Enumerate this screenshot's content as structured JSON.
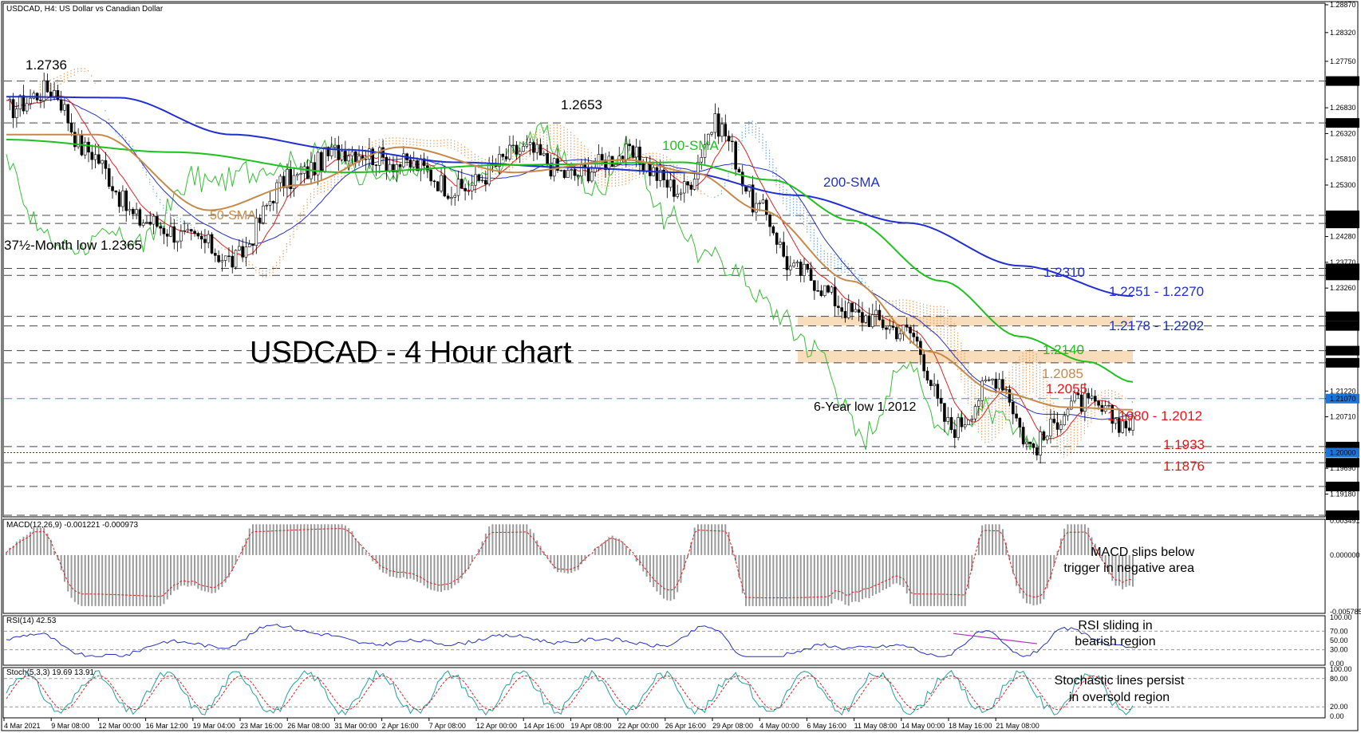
{
  "header": {
    "main_title": "USDCAD, H4:  US Dollar vs Canadian Dollar",
    "macd_title": "MACD(12,26,9) -0.001221 -0.000973",
    "rsi_title": "RSI(14) 42.53",
    "stoch_title": "Stoch(5,3,3) 19.69 13.91"
  },
  "chart_data": [
    {
      "type": "line",
      "panel": "price",
      "title": "USDCAD - 4 Hour chart",
      "ylim": [
        1.1876,
        1.2887
      ],
      "price_axis_ticks": [
        "1.28870",
        "1.28320",
        "1.27750",
        "1.27360",
        "1.26830",
        "1.26530",
        "1.26320",
        "1.25810",
        "1.25300",
        "1.24700",
        "1.24540",
        "1.24280",
        "1.23770",
        "1.23650",
        "1.23510",
        "1.23260",
        "1.22700",
        "1.22510",
        "1.22020",
        "1.21780",
        "1.21220",
        "1.21070",
        "1.20710",
        "1.20120",
        "1.20000",
        "1.19800",
        "1.19690",
        "1.19330",
        "1.19180",
        "1.18760"
      ],
      "x_labels": [
        "4 Mar 2021",
        "9 Mar 08:00",
        "12 Mar 00:00",
        "16 Mar 12:00",
        "19 Mar 04:00",
        "23 Mar 16:00",
        "26 Mar 08:00",
        "31 Mar 00:00",
        "2 Apr 16:00",
        "7 Apr 08:00",
        "12 Apr 00:00",
        "14 Apr 16:00",
        "19 Apr 08:00",
        "22 Apr 00:00",
        "26 Apr 16:00",
        "29 Apr 08:00",
        "4 May 00:00",
        "6 May 16:00",
        "11 May 08:00",
        "14 May 00:00",
        "18 May 16:00",
        "21 May 08:00"
      ],
      "horizontal_levels": [
        {
          "value": 1.2736,
          "label": "1.27360"
        },
        {
          "value": 1.2653,
          "label": "1.26530"
        },
        {
          "value": 1.247,
          "label": "1.24700"
        },
        {
          "value": 1.2454,
          "label": "1.24540"
        },
        {
          "value": 1.2365,
          "label": "1.23650"
        },
        {
          "value": 1.2351,
          "label": "1.23510"
        },
        {
          "value": 1.227,
          "label": "1.22700"
        },
        {
          "value": 1.2251,
          "label": "1.22510"
        },
        {
          "value": 1.2202,
          "label": "1.22020"
        },
        {
          "value": 1.2178,
          "label": "1.21780"
        },
        {
          "value": 1.2107,
          "label": "1.21070"
        },
        {
          "value": 1.2012,
          "label": "1.20120"
        },
        {
          "value": 1.2,
          "label": "1.20000"
        },
        {
          "value": 1.198,
          "label": "1.19800"
        },
        {
          "value": 1.1933,
          "label": "1.19330"
        },
        {
          "value": 1.1876,
          "label": "1.18760"
        }
      ],
      "zones": [
        {
          "from": 1.2251,
          "to": 1.227
        },
        {
          "from": 1.2178,
          "to": 1.2202
        }
      ],
      "series": [
        {
          "name": "200-SMA",
          "x": [
            0,
            0.1,
            0.2,
            0.3,
            0.4,
            0.5,
            0.6,
            0.7,
            0.8,
            0.9,
            1
          ],
          "values": [
            1.2705,
            1.2703,
            1.263,
            1.26,
            1.2575,
            1.2565,
            1.2555,
            1.251,
            1.2455,
            1.237,
            1.231
          ]
        },
        {
          "name": "100-SMA",
          "x": [
            0,
            0.15,
            0.3,
            0.45,
            0.6,
            0.68,
            0.75,
            0.83,
            0.9,
            0.96,
            1
          ],
          "values": [
            1.262,
            1.2595,
            1.2555,
            1.257,
            1.2575,
            1.254,
            1.246,
            1.234,
            1.223,
            1.218,
            1.214
          ]
        },
        {
          "name": "50-SMA",
          "x": [
            0,
            0.08,
            0.18,
            0.26,
            0.35,
            0.45,
            0.55,
            0.61,
            0.67,
            0.75,
            0.82,
            0.88,
            0.94,
            1
          ],
          "values": [
            1.263,
            1.263,
            1.248,
            1.253,
            1.2605,
            1.2555,
            1.258,
            1.2555,
            1.248,
            1.234,
            1.22,
            1.212,
            1.209,
            1.2085
          ]
        }
      ],
      "price_path": {
        "x": [
          0,
          0.04,
          0.07,
          0.12,
          0.17,
          0.2,
          0.25,
          0.3,
          0.36,
          0.4,
          0.46,
          0.5,
          0.55,
          0.6,
          0.63,
          0.67,
          0.7,
          0.76,
          0.8,
          0.84,
          0.88,
          0.91,
          0.95,
          1
        ],
        "values": [
          1.268,
          1.272,
          1.26,
          1.246,
          1.242,
          1.238,
          1.254,
          1.26,
          1.257,
          1.252,
          1.26,
          1.255,
          1.259,
          1.252,
          1.265,
          1.248,
          1.236,
          1.227,
          1.224,
          1.205,
          1.215,
          1.2012,
          1.21,
          1.2055
        ]
      },
      "annotations": [
        {
          "text": "1.2736",
          "color": "#000000"
        },
        {
          "text": "1.2653",
          "color": "#000000"
        },
        {
          "text": "37½-Month low 1.2365",
          "color": "#000000"
        },
        {
          "text": "50-SMA",
          "color": "#c58a4a"
        },
        {
          "text": "100-SMA",
          "color": "#1fc01f"
        },
        {
          "text": "200-SMA",
          "color": "#1f2fd0"
        },
        {
          "text": "1.2310",
          "color": "#1f2fd0"
        },
        {
          "text": "1.2251 - 1.2270",
          "color": "#1f2fd0"
        },
        {
          "text": "1.2178 - 1.2202",
          "color": "#1f2fd0"
        },
        {
          "text": "1.2140",
          "color": "#1fc01f"
        },
        {
          "text": "1.2085",
          "color": "#c58a4a"
        },
        {
          "text": "1.2055",
          "color": "#e01818"
        },
        {
          "text": "6-Year low 1.2012",
          "color": "#000000"
        },
        {
          "text": "1.1980 - 1.2012",
          "color": "#e01818"
        },
        {
          "text": "1.1933",
          "color": "#e01818"
        },
        {
          "text": "1.1876",
          "color": "#e01818"
        }
      ]
    },
    {
      "type": "bar",
      "panel": "macd",
      "ylim": [
        -0.005785,
        0.003491
      ],
      "axis_ticks": [
        "0.003491",
        "0.000000",
        "-0.005785"
      ],
      "annotation": [
        "MACD slips below",
        "trigger in negative area"
      ]
    },
    {
      "type": "line",
      "panel": "rsi",
      "ylim": [
        0,
        100
      ],
      "axis_ticks": [
        "100.00",
        "70.00",
        "50.00",
        "30.00",
        "0.00"
      ],
      "annotation": [
        "RSI sliding in",
        "bearish region"
      ]
    },
    {
      "type": "line",
      "panel": "stochastic",
      "ylim": [
        0,
        100
      ],
      "axis_ticks": [
        "100.00",
        "80.00",
        "20.00",
        "0.00"
      ],
      "annotation": [
        "Stochastic lines persist",
        "in oversold region"
      ]
    }
  ],
  "colors": {
    "sma200": "#1f2fd0",
    "sma100": "#1fc01f",
    "sma50": "#c58a4a",
    "price": "#e01818",
    "support": "#e01818",
    "zone": "#f7d7b0",
    "grid_dash": "#444444",
    "cloud_blue": "#6aa8e0",
    "cloud_orange": "#e8a060",
    "rsi": "#2230c0",
    "stoch_main": "#20a0a0",
    "stoch_signal": "#e02020"
  }
}
